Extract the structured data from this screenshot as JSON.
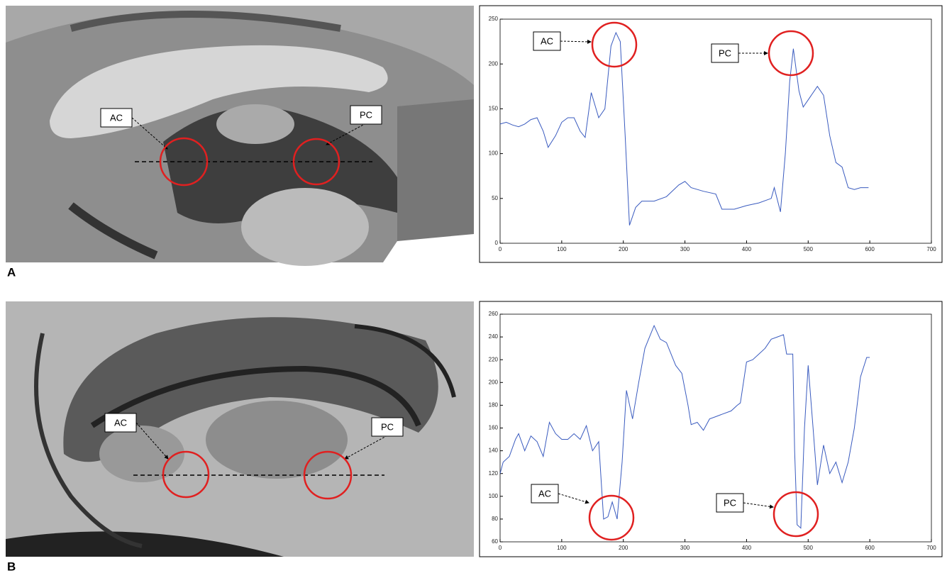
{
  "panels": [
    {
      "label": "A",
      "image_annotations": [
        "AC",
        "PC"
      ]
    },
    {
      "label": "B",
      "image_annotations": [
        "AC",
        "PC"
      ]
    }
  ],
  "chart_data": [
    {
      "type": "line",
      "annotations": [
        "AC",
        "PC"
      ],
      "x": [
        0,
        10,
        20,
        30,
        40,
        50,
        60,
        70,
        78,
        90,
        100,
        110,
        120,
        130,
        138,
        148,
        160,
        170,
        180,
        188,
        195,
        203,
        210,
        220,
        230,
        250,
        270,
        290,
        300,
        310,
        330,
        350,
        360,
        380,
        400,
        420,
        440,
        445,
        455,
        463,
        470,
        476,
        485,
        492,
        500,
        515,
        525,
        535,
        545,
        555,
        565,
        575,
        585,
        598
      ],
      "series": [
        {
          "color": "#3a5bbf",
          "values": [
            133,
            135,
            132,
            130,
            133,
            138,
            140,
            125,
            107,
            120,
            135,
            140,
            140,
            125,
            118,
            168,
            140,
            150,
            220,
            235,
            225,
            120,
            20,
            40,
            47,
            47,
            52,
            65,
            69,
            62,
            58,
            55,
            38,
            38,
            42,
            45,
            50,
            62,
            35,
            100,
            180,
            217,
            170,
            152,
            160,
            175,
            165,
            120,
            90,
            85,
            62,
            60,
            62,
            62
          ]
        }
      ],
      "xlim": [
        0,
        700
      ],
      "xticks": [
        0,
        100,
        200,
        300,
        400,
        500,
        600,
        700
      ],
      "ylim": [
        0,
        250
      ],
      "yticks": [
        0,
        50,
        100,
        150,
        200,
        250
      ]
    },
    {
      "type": "line",
      "annotations": [
        "AC",
        "PC"
      ],
      "x": [
        0,
        5,
        15,
        25,
        30,
        40,
        50,
        60,
        70,
        80,
        90,
        100,
        110,
        120,
        130,
        140,
        150,
        160,
        168,
        175,
        182,
        190,
        198,
        205,
        215,
        225,
        235,
        250,
        260,
        270,
        285,
        295,
        305,
        310,
        320,
        330,
        340,
        350,
        360,
        375,
        385,
        390,
        400,
        410,
        420,
        430,
        440,
        450,
        460,
        465,
        470,
        475,
        478,
        482,
        488,
        494,
        500,
        508,
        515,
        525,
        535,
        545,
        555,
        565,
        575,
        585,
        595,
        600
      ],
      "series": [
        {
          "color": "#3a5bbf",
          "values": [
            120,
            130,
            135,
            150,
            155,
            140,
            153,
            148,
            135,
            165,
            155,
            150,
            150,
            155,
            150,
            162,
            140,
            148,
            80,
            82,
            95,
            80,
            130,
            193,
            168,
            200,
            230,
            250,
            238,
            235,
            215,
            208,
            180,
            163,
            165,
            158,
            168,
            170,
            172,
            175,
            180,
            182,
            218,
            220,
            225,
            230,
            238,
            240,
            242,
            225,
            225,
            225,
            140,
            75,
            72,
            160,
            215,
            160,
            110,
            145,
            120,
            130,
            112,
            130,
            160,
            205,
            222,
            222
          ]
        }
      ],
      "xlim": [
        0,
        700
      ],
      "xticks": [
        0,
        100,
        200,
        300,
        400,
        500,
        600,
        700
      ],
      "ylim": [
        60,
        260
      ],
      "yticks": [
        60,
        80,
        100,
        120,
        140,
        160,
        180,
        200,
        220,
        240,
        260
      ]
    }
  ]
}
